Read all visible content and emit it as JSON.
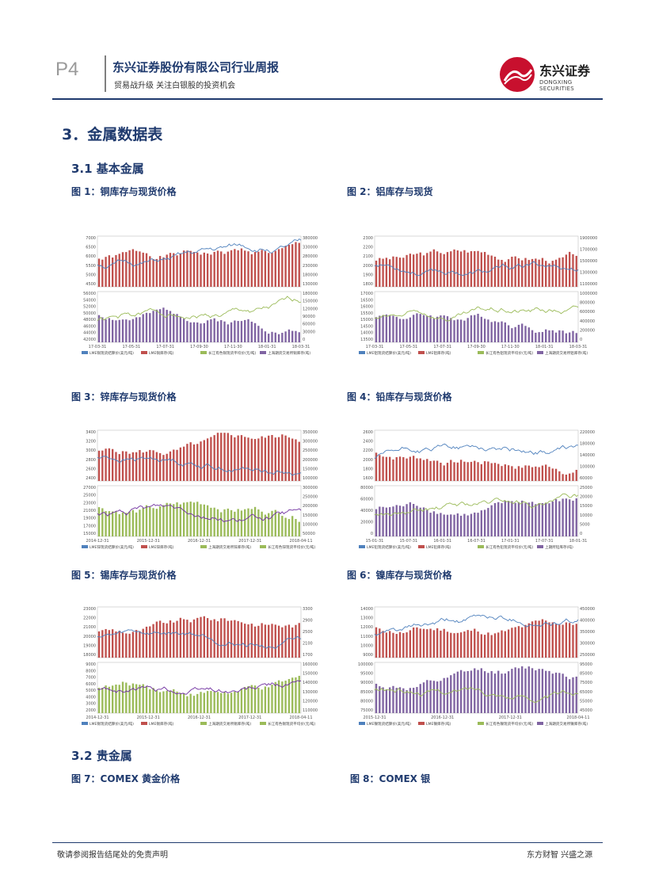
{
  "header": {
    "page_number": "P4",
    "title": "东兴证券股份有限公司行业周报",
    "subtitle": "贸易战升级 关注白银股的投资机会",
    "logo_cn": "东兴证券",
    "logo_en": "DONGXING SECURITIES"
  },
  "section": {
    "heading": "3．金属数据表",
    "sub1": "3.1  基本金属",
    "sub2": "3.2  贵金属"
  },
  "figures": {
    "fig1": "图 1：铜库存与现货价格",
    "fig2": "图 2：铝库存与现货",
    "fig3": "图 3：锌库存与现货价格",
    "fig4": "图 4：铅库存与现货价格",
    "fig5": "图 5：锡库存与现货价格",
    "fig6": "图 6：镍库存与现货价格",
    "fig7": "图 7：COMEX 黄金价格",
    "fig8": "图 8：COMEX 银"
  },
  "colors": {
    "brand": "#1f3a6e",
    "bar_red": "#c0504d",
    "bar_purple": "#8064a2",
    "bar_green": "#9bbb59",
    "line_blue": "#4f81bd",
    "line_olive": "#9bbb59",
    "line_purple": "#7030a0"
  },
  "chart_data": [
    {
      "id": "c1",
      "type": "bar",
      "top_bars": "red",
      "bottom_bars": "purple",
      "top_seed": 1,
      "bottom_seed": 2,
      "x_ticks": [
        "17-03-31",
        "17-05-31",
        "17-07-31",
        "17-09-30",
        "17-11-30",
        "18-01-31",
        "18-03-31"
      ],
      "left_top_ticks": [
        "7000",
        "6500",
        "6000",
        "5500",
        "5000",
        "4500"
      ],
      "right_top_ticks": [
        "380000",
        "330000",
        "280000",
        "230000",
        "180000",
        "130000"
      ],
      "left_bottom_ticks": [
        "56000",
        "54000",
        "52000",
        "50000",
        "48000",
        "46000",
        "44000",
        "42000"
      ],
      "right_bottom_ticks": [
        "180000",
        "150000",
        "120000",
        "90000",
        "60000",
        "30000",
        "0"
      ],
      "legend": [
        "LME铜现货结算价(美元/吨)",
        "LME铜库存(吨)",
        "长江有色铜现货平均价(元/吨)",
        "上海期货交易所铜库存(吨)"
      ]
    },
    {
      "id": "c2",
      "type": "bar",
      "top_bars": "red",
      "bottom_bars": "purple",
      "top_seed": 3,
      "bottom_seed": 4,
      "x_ticks": [
        "17-03-31",
        "17-05-31",
        "17-07-31",
        "17-09-30",
        "17-11-30",
        "18-01-31",
        "18-03-31"
      ],
      "left_top_ticks": [
        "2300",
        "2200",
        "2100",
        "2000",
        "1900",
        "1800"
      ],
      "right_top_ticks": [
        "1900000",
        "1700000",
        "1500000",
        "1300000",
        "1100000"
      ],
      "left_bottom_ticks": [
        "17000",
        "16500",
        "16000",
        "15500",
        "15000",
        "14500",
        "14000",
        "13500"
      ],
      "right_bottom_ticks": [
        "1000000",
        "800000",
        "600000",
        "400000",
        "200000",
        "0"
      ],
      "legend": [
        "LME铝现货结算价(美元/吨)",
        "LME铝库存(吨)",
        "长江有色铝现货平均价(元/吨)",
        "上海期货交易所铝库存(吨)"
      ]
    },
    {
      "id": "c3",
      "type": "bar",
      "top_bars": "red",
      "bottom_bars": "green",
      "top_seed": 5,
      "bottom_seed": 6,
      "x_ticks": [
        "2014-12-31",
        "2015-12-31",
        "2016-12-31",
        "2017-12-31",
        "2018-04-11"
      ],
      "left_top_ticks": [
        "3400",
        "3200",
        "3000",
        "2800",
        "2600",
        "2400"
      ],
      "right_top_ticks": [
        "350000",
        "300000",
        "250000",
        "200000",
        "150000",
        "100000"
      ],
      "left_bottom_ticks": [
        "27000",
        "25000",
        "23000",
        "21000",
        "19000",
        "17000",
        "15000"
      ],
      "right_bottom_ticks": [
        "300000",
        "250000",
        "200000",
        "150000",
        "100000",
        "50000"
      ],
      "legend": [
        "LME锌现货结算价(美元/吨)",
        "LME锌库存(吨)",
        "上海期货交易所锌库存(吨)",
        "长江有色锌现货平均价(元/吨)"
      ]
    },
    {
      "id": "c4",
      "type": "bar",
      "top_bars": "red",
      "bottom_bars": "purple",
      "top_seed": 7,
      "bottom_seed": 8,
      "x_ticks": [
        "15-01-31",
        "15-07-31",
        "16-01-31",
        "16-07-31",
        "17-01-31",
        "17-07-31",
        "18-01-31"
      ],
      "left_top_ticks": [
        "2600",
        "2400",
        "2200",
        "2000",
        "1800",
        "1600"
      ],
      "right_top_ticks": [
        "220000",
        "180000",
        "140000",
        "100000",
        "60000"
      ],
      "left_bottom_ticks": [
        "80000",
        "60000",
        "40000",
        "20000",
        "0"
      ],
      "right_bottom_ticks": [
        "25000",
        "20000",
        "15000",
        "10000",
        "5000",
        "0"
      ],
      "legend": [
        "LME铅现货结算价(美元/吨)",
        "LME铅库存(吨)",
        "长江有色铅现货平均价(元/吨)",
        "上期所铅库存(吨)"
      ]
    },
    {
      "id": "c5",
      "type": "bar",
      "top_bars": "red",
      "bottom_bars": "green",
      "top_seed": 9,
      "bottom_seed": 10,
      "x_ticks": [
        "2014-12-31",
        "2015-12-31",
        "2016-12-31",
        "2017-12-31",
        "2018-04-11"
      ],
      "left_top_ticks": [
        "23000",
        "22000",
        "21000",
        "20000",
        "19000",
        "18000"
      ],
      "right_top_ticks": [
        "3300",
        "2900",
        "2500",
        "2100",
        "1700"
      ],
      "left_bottom_ticks": [
        "9000",
        "8000",
        "7000",
        "6000",
        "5000",
        "4000",
        "3000",
        "2000"
      ],
      "right_bottom_ticks": [
        "160000",
        "150000",
        "140000",
        "130000",
        "120000",
        "110000"
      ],
      "legend": [
        "LME锡现货结算价(美元/吨)",
        "LME锡库存(吨)",
        "上海期货交易所锡库存(吨)",
        "长江有色锡现货平均价(元/吨)"
      ]
    },
    {
      "id": "c6",
      "type": "bar",
      "top_bars": "red",
      "bottom_bars": "purple",
      "top_seed": 11,
      "bottom_seed": 12,
      "x_ticks": [
        "2015-12-31",
        "2016-12-31",
        "2017-12-31",
        "2018-04-11"
      ],
      "left_top_ticks": [
        "14000",
        "13000",
        "12000",
        "11000",
        "10000",
        "9000"
      ],
      "right_top_ticks": [
        "450000",
        "400000",
        "350000",
        "300000",
        "250000"
      ],
      "left_bottom_ticks": [
        "100000",
        "95000",
        "90000",
        "85000",
        "80000",
        "75000"
      ],
      "right_bottom_ticks": [
        "95000",
        "85000",
        "75000",
        "65000",
        "55000",
        "45000"
      ],
      "legend": [
        "LME镍现货结算价(美元/吨)",
        "LME镍库存(吨)",
        "长江有色镍现货平均价(元/吨)",
        "上海期货交易所镍库存(吨)"
      ]
    }
  ],
  "footer": {
    "left": "敬请参阅报告结尾处的免责声明",
    "right": "东方财智 兴盛之源"
  }
}
